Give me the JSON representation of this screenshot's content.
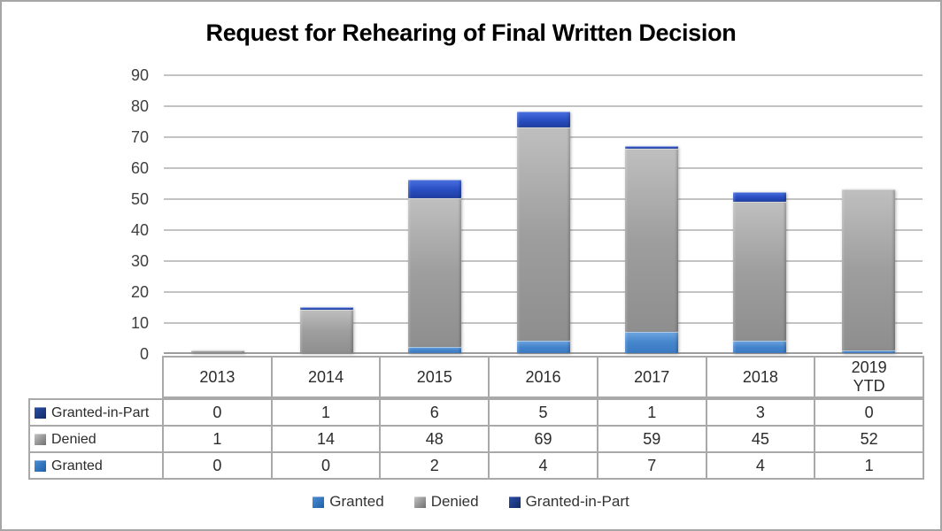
{
  "title": "Request for Rehearing of Final Written Decision",
  "chart_data": {
    "type": "bar",
    "stacked": true,
    "title": "Request for Rehearing of Final Written Decision",
    "categories": [
      "2013",
      "2014",
      "2015",
      "2016",
      "2017",
      "2018",
      "2019 YTD"
    ],
    "series": [
      {
        "name": "Granted",
        "values": [
          0,
          0,
          2,
          4,
          7,
          4,
          1
        ],
        "color": "#4585cc",
        "gradient_top": "#6ea6e0",
        "gradient_bottom": "#3a79c2",
        "swatch_top": "#4b8fd6",
        "swatch_bottom": "#1f5fa8"
      },
      {
        "name": "Denied",
        "values": [
          1,
          14,
          48,
          69,
          59,
          45,
          52
        ],
        "color": "#9e9e9e",
        "gradient_top": "#bfbfbf",
        "gradient_bottom": "#8e8e8e",
        "swatch_top": "#c4c4c4",
        "swatch_bottom": "#6e6e6e"
      },
      {
        "name": "Granted-in-Part",
        "values": [
          0,
          1,
          6,
          5,
          1,
          3,
          0
        ],
        "color": "#2b50c4",
        "gradient_top": "#4a71e0",
        "gradient_bottom": "#1d3da0",
        "swatch_top": "#2a4fa8",
        "swatch_bottom": "#122a66"
      }
    ],
    "stack_order_bottom_to_top": [
      "Granted",
      "Denied",
      "Granted-in-Part"
    ],
    "ylim": [
      0,
      90
    ],
    "yticks": [
      0,
      10,
      20,
      30,
      40,
      50,
      60,
      70,
      80,
      90
    ],
    "gridlines": true,
    "legend_position": "bottom"
  },
  "table": {
    "column_headers": [
      "2013",
      "2014",
      "2015",
      "2016",
      "2017",
      "2018",
      "2019\nYTD"
    ],
    "rows": [
      {
        "label": "Granted-in-Part",
        "series": "Granted-in-Part",
        "values": [
          "0",
          "1",
          "6",
          "5",
          "1",
          "3",
          "0"
        ]
      },
      {
        "label": "Denied",
        "series": "Denied",
        "values": [
          "1",
          "14",
          "48",
          "69",
          "59",
          "45",
          "52"
        ]
      },
      {
        "label": "Granted",
        "series": "Granted",
        "values": [
          "0",
          "0",
          "2",
          "4",
          "7",
          "4",
          "1"
        ]
      }
    ]
  },
  "legend": {
    "items": [
      {
        "label": "Granted"
      },
      {
        "label": "Denied"
      },
      {
        "label": "Granted-in-Part"
      }
    ]
  }
}
